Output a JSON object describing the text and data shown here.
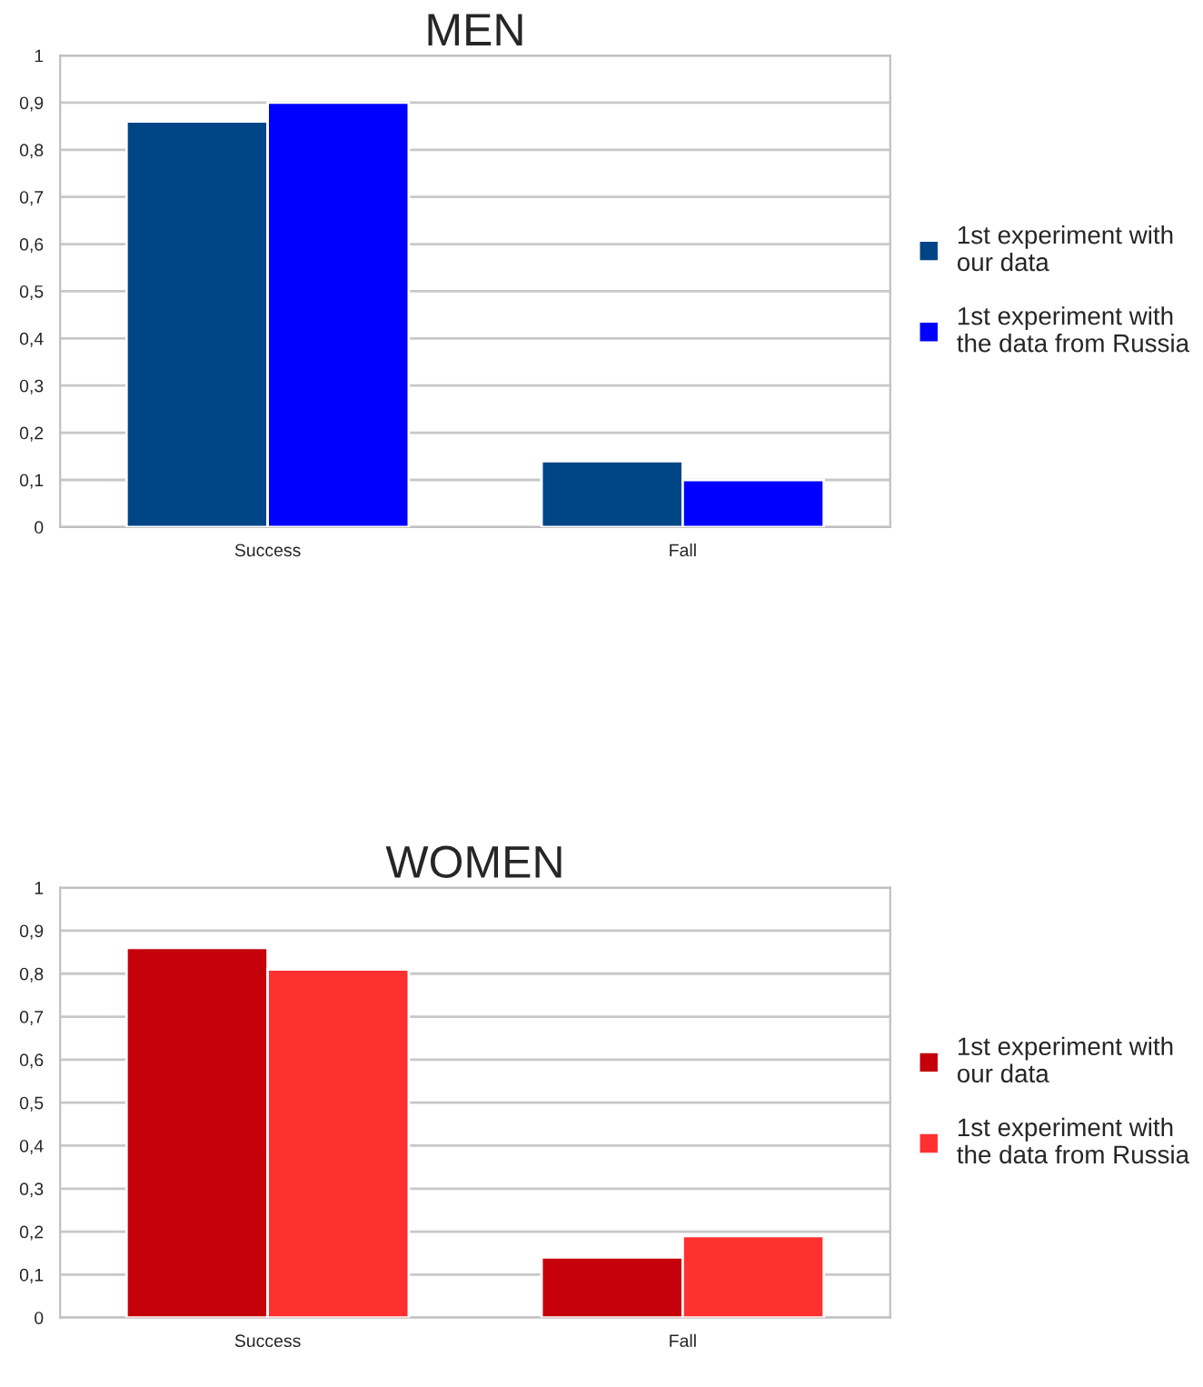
{
  "chart_data": [
    {
      "type": "bar",
      "title": "MEN",
      "categories": [
        "Success",
        "Fall"
      ],
      "series": [
        {
          "name": "1st experiment with our data",
          "color": "#004586",
          "values": [
            0.86,
            0.14
          ]
        },
        {
          "name": "1st experiment with the data from Russia",
          "color": "#0000ff",
          "values": [
            0.9,
            0.1
          ]
        }
      ],
      "ylim": [
        0,
        1
      ],
      "yticks": [
        0,
        {
          "value": 0.1,
          "label": "0,1"
        },
        {
          "value": 0.2,
          "label": "0,2"
        },
        {
          "value": 0.3,
          "label": "0,3"
        },
        {
          "value": 0.4,
          "label": "0,4"
        },
        {
          "value": 0.5,
          "label": "0,5"
        },
        {
          "value": 0.6,
          "label": "0,6"
        },
        {
          "value": 0.7,
          "label": "0,7"
        },
        {
          "value": 0.8,
          "label": "0,8"
        },
        {
          "value": 0.9,
          "label": "0,9"
        },
        1
      ],
      "grid": "y",
      "legend": "right"
    },
    {
      "type": "bar",
      "title": "WOMEN",
      "categories": [
        "Success",
        "Fall"
      ],
      "series": [
        {
          "name": "1st experiment with our data",
          "color": "#c5000b",
          "values": [
            0.86,
            0.14
          ]
        },
        {
          "name": "1st experiment with the data from Russia",
          "color": "#ff3030",
          "values": [
            0.81,
            0.19
          ]
        }
      ],
      "ylim": [
        0,
        1
      ],
      "yticks": [
        0,
        {
          "value": 0.1,
          "label": "0,1"
        },
        {
          "value": 0.2,
          "label": "0,2"
        },
        {
          "value": 0.3,
          "label": "0,3"
        },
        {
          "value": 0.4,
          "label": "0,4"
        },
        {
          "value": 0.5,
          "label": "0,5"
        },
        {
          "value": 0.6,
          "label": "0,6"
        },
        {
          "value": 0.7,
          "label": "0,7"
        },
        {
          "value": 0.8,
          "label": "0,8"
        },
        {
          "value": 0.9,
          "label": "0,9"
        },
        1
      ],
      "grid": "y",
      "legend": "right"
    }
  ]
}
